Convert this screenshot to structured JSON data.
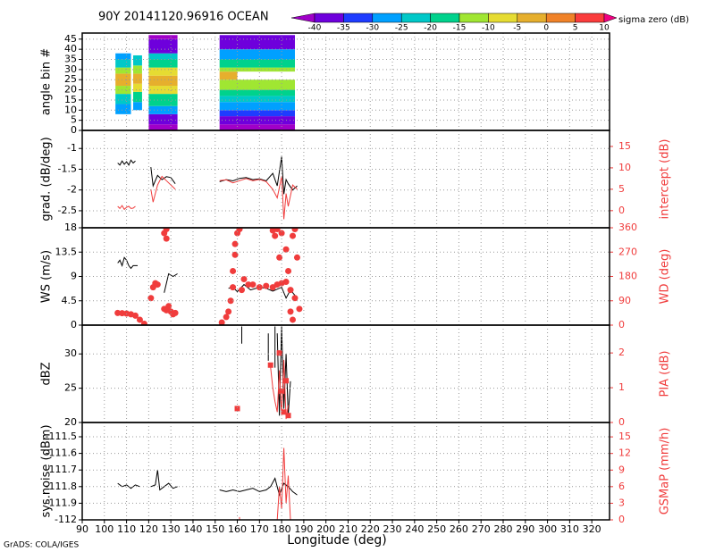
{
  "footer": "GrADS: COLA/IGES",
  "chart_data": [
    {
      "type": "heatmap",
      "title": "90Y 20141120.96916 OCEAN",
      "ylabel": "angle bin #",
      "ylim": [
        0,
        48
      ],
      "yticks": [
        0,
        5,
        10,
        15,
        20,
        25,
        30,
        35,
        40,
        45
      ],
      "grid": true,
      "colorbar": {
        "label": "sigma zero (dB)",
        "levels": [
          -40,
          -35,
          -30,
          -25,
          -20,
          -15,
          -10,
          -5,
          0,
          5,
          10
        ],
        "colors": [
          "#a000c8",
          "#6e00dc",
          "#1e3cff",
          "#00a0ff",
          "#00c8c8",
          "#00d28c",
          "#a0e632",
          "#e6dc32",
          "#e6af2d",
          "#f08228",
          "#fa3c3c",
          "#f00082"
        ]
      },
      "cells": [
        [
          105,
          112,
          8,
          13,
          -27
        ],
        [
          105,
          112,
          13,
          18,
          -22
        ],
        [
          105,
          112,
          18,
          22,
          -12
        ],
        [
          105,
          112,
          22,
          28,
          -2
        ],
        [
          105,
          112,
          28,
          31,
          -12
        ],
        [
          105,
          112,
          31,
          35,
          -22
        ],
        [
          105,
          112,
          35,
          38,
          -28
        ],
        [
          113,
          117,
          10,
          14,
          -27
        ],
        [
          113,
          117,
          14,
          19,
          -20
        ],
        [
          113,
          117,
          19,
          23,
          -10
        ],
        [
          113,
          117,
          23,
          28,
          -3
        ],
        [
          113,
          117,
          28,
          32,
          -14
        ],
        [
          113,
          117,
          32,
          37,
          -24
        ],
        [
          120,
          133,
          0,
          3,
          -42
        ],
        [
          120,
          133,
          3,
          8,
          -37
        ],
        [
          120,
          133,
          8,
          12,
          -27
        ],
        [
          120,
          133,
          12,
          18,
          -20
        ],
        [
          120,
          133,
          18,
          22,
          -8
        ],
        [
          120,
          133,
          22,
          27,
          -2
        ],
        [
          120,
          133,
          27,
          31,
          -8
        ],
        [
          120,
          133,
          31,
          35,
          -18
        ],
        [
          120,
          133,
          35,
          38,
          -25
        ],
        [
          120,
          133,
          38,
          45,
          -37
        ],
        [
          120,
          133,
          45,
          47,
          -42
        ],
        [
          152,
          186,
          0,
          3,
          -42
        ],
        [
          152,
          186,
          3,
          7,
          -37
        ],
        [
          152,
          186,
          7,
          10,
          -32
        ],
        [
          152,
          186,
          10,
          14,
          -27
        ],
        [
          152,
          186,
          14,
          17,
          -22
        ],
        [
          152,
          186,
          17,
          20,
          -17
        ],
        [
          152,
          186,
          20,
          25,
          -12
        ],
        [
          152,
          160,
          25,
          29,
          -2
        ],
        [
          152,
          186,
          29,
          31,
          -12
        ],
        [
          152,
          186,
          31,
          35,
          -20
        ],
        [
          152,
          186,
          35,
          40,
          -27
        ],
        [
          152,
          186,
          40,
          47,
          -37
        ]
      ]
    },
    {
      "type": "line",
      "ylabel": "grad. (dB/deg)",
      "y2label": "intercept (dB)",
      "ylim": [
        -2.91,
        -0.565
      ],
      "yticks": [
        -2.5,
        -2,
        -1.5,
        -1
      ],
      "y2lim": [
        -4,
        18.75
      ],
      "y2ticks": [
        0,
        5,
        10,
        15
      ],
      "grid": true,
      "series": [
        {
          "color": "#000000",
          "style": "line",
          "x": [
            106,
            107,
            108,
            109,
            110,
            111,
            112,
            113,
            114,
            null,
            121,
            122,
            124,
            126,
            128,
            130,
            132,
            null,
            152,
            155,
            158,
            161,
            164,
            167,
            170,
            173,
            176,
            178,
            180,
            181,
            182,
            183,
            185,
            187
          ],
          "values": [
            -1.35,
            -1.4,
            -1.3,
            -1.38,
            -1.32,
            -1.4,
            -1.28,
            -1.35,
            -1.3,
            null,
            -1.45,
            -1.9,
            -1.65,
            -1.75,
            -1.68,
            -1.7,
            -1.85,
            null,
            -1.8,
            -1.75,
            -1.78,
            -1.72,
            -1.7,
            -1.75,
            -1.73,
            -1.78,
            -1.6,
            -1.9,
            -1.2,
            -2.1,
            -1.75,
            -1.85,
            -2.0,
            -1.9
          ]
        },
        {
          "color": "#f03c3c",
          "style": "line",
          "axis": "y2",
          "x": [
            106,
            107,
            108,
            109,
            110,
            111,
            112,
            113,
            114,
            null,
            121,
            122,
            124,
            126,
            128,
            130,
            132,
            null,
            152,
            155,
            158,
            161,
            164,
            167,
            170,
            173,
            176,
            178,
            180,
            181,
            182,
            183,
            185,
            187
          ],
          "values": [
            1,
            0.5,
            1.2,
            0.3,
            0.8,
            1,
            0.5,
            0.6,
            1,
            null,
            5,
            2,
            6,
            8,
            7,
            6,
            5,
            null,
            7,
            7.2,
            6.5,
            7,
            7.5,
            7,
            7.3,
            6.8,
            5,
            3,
            8,
            -2,
            4,
            1,
            6,
            5
          ]
        }
      ]
    },
    {
      "type": "line",
      "ylabel": "WS (m/s)",
      "y2label": "WD (deg)",
      "ylim": [
        0,
        18
      ],
      "yticks": [
        0,
        4.5,
        9,
        13.5,
        18
      ],
      "y2lim": [
        0,
        360
      ],
      "y2ticks": [
        0,
        90,
        180,
        270,
        360
      ],
      "grid": true,
      "series": [
        {
          "color": "#000000",
          "style": "line",
          "x": [
            106,
            107,
            108,
            109,
            110,
            111,
            112,
            113,
            115,
            null,
            127,
            129,
            131,
            133,
            null,
            156,
            158,
            160,
            163,
            166,
            170,
            173,
            176,
            180,
            182,
            184,
            186
          ],
          "values": [
            11.5,
            12,
            11,
            12.5,
            12,
            11,
            10.5,
            11,
            11,
            null,
            6,
            9.5,
            9,
            9.5,
            null,
            6.8,
            7,
            6.2,
            7.5,
            6.5,
            7,
            6.8,
            6.3,
            7,
            5,
            6.5,
            5.5
          ]
        },
        {
          "color": "#f03c3c",
          "style": "dots",
          "axis": "y2",
          "x": [
            106,
            108,
            110,
            112,
            114,
            116,
            118,
            121,
            122,
            123,
            124,
            127,
            128,
            129,
            130,
            131,
            132,
            127,
            128,
            128,
            153,
            155,
            156,
            157,
            158,
            158,
            159,
            159,
            160,
            161,
            162,
            163,
            165,
            167,
            170,
            173,
            176,
            178,
            180,
            182,
            184,
            186,
            188,
            176,
            177,
            178,
            179,
            180,
            182,
            183,
            185,
            186,
            187,
            184,
            185
          ],
          "values": [
            45,
            44,
            43,
            40,
            35,
            20,
            5,
            100,
            140,
            155,
            150,
            60,
            55,
            70,
            50,
            40,
            45,
            340,
            355,
            320,
            10,
            30,
            50,
            90,
            140,
            200,
            260,
            300,
            340,
            355,
            130,
            170,
            150,
            150,
            140,
            145,
            140,
            150,
            155,
            160,
            130,
            100,
            60,
            350,
            330,
            355,
            250,
            340,
            280,
            200,
            330,
            355,
            250,
            50,
            20
          ]
        }
      ]
    },
    {
      "type": "line",
      "ylabel": "dBZ",
      "y2label": "PIA (dB)",
      "ylim": [
        20,
        34.2
      ],
      "yticks": [
        20,
        25,
        30
      ],
      "y2lim": [
        0,
        2.8
      ],
      "y2ticks": [
        0,
        1,
        2
      ],
      "grid": true,
      "series": [
        {
          "color": "#000000",
          "style": "line",
          "x": [
            162,
            162,
            null,
            174,
            174,
            null,
            177,
            177,
            null,
            178,
            179,
            180,
            181,
            182,
            183,
            184
          ],
          "values": [
            34,
            31.5,
            null,
            33,
            29,
            null,
            34,
            28,
            null,
            33,
            21,
            34,
            22,
            30,
            21,
            26
          ]
        },
        {
          "color": "#f03c3c",
          "style": "line",
          "axis": "y2",
          "x": [
            175,
            176,
            177,
            178,
            179,
            180,
            181,
            182,
            183
          ],
          "values": [
            1.6,
            1.0,
            0.6,
            0.3,
            1.5,
            0.2,
            1.8,
            0.1,
            0.5
          ]
        },
        {
          "color": "#f03c3c",
          "style": "squares",
          "axis": "y2",
          "x": [
            160,
            175,
            179,
            180,
            181,
            182,
            183
          ],
          "values": [
            0.4,
            1.65,
            2.0,
            0.9,
            0.3,
            1.2,
            0.2
          ]
        }
      ]
    },
    {
      "type": "line",
      "ylabel": "sys.noise (dBm)",
      "y2label": "GSMaP (mm/h)",
      "xlabel": "Longitude (deg)",
      "xlim": [
        90,
        328
      ],
      "xticks": [
        90,
        100,
        110,
        120,
        130,
        140,
        150,
        160,
        170,
        180,
        190,
        200,
        210,
        220,
        230,
        240,
        250,
        260,
        270,
        280,
        290,
        300,
        310,
        320
      ],
      "ylim": [
        -112,
        -111.414
      ],
      "yticks": [
        -112,
        -111.9,
        -111.8,
        -111.7,
        -111.6,
        -111.5
      ],
      "y2lim": [
        0,
        17.6
      ],
      "y2ticks": [
        0,
        3,
        6,
        9,
        12,
        15
      ],
      "grid": true,
      "series": [
        {
          "color": "#000000",
          "style": "line",
          "x": [
            106,
            108,
            110,
            112,
            114,
            116,
            null,
            121,
            123,
            124,
            125,
            127,
            129,
            131,
            133,
            null,
            152,
            155,
            158,
            161,
            164,
            167,
            170,
            173,
            175,
            177,
            179,
            181,
            183,
            185,
            187
          ],
          "values": [
            -111.78,
            -111.8,
            -111.79,
            -111.81,
            -111.79,
            -111.8,
            null,
            -111.8,
            -111.79,
            -111.7,
            -111.82,
            -111.8,
            -111.78,
            -111.81,
            -111.8,
            null,
            -111.82,
            -111.83,
            -111.82,
            -111.83,
            -111.82,
            -111.81,
            -111.83,
            -111.82,
            -111.8,
            -111.75,
            -111.85,
            -111.78,
            -111.8,
            -111.83,
            -111.85
          ]
        },
        {
          "color": "#f03c3c",
          "style": "line",
          "axis": "y2",
          "x": [
            161,
            161,
            null,
            178,
            179,
            180,
            181,
            182,
            183,
            184
          ],
          "values": [
            0,
            0.5,
            null,
            0,
            6,
            2,
            13,
            3,
            8,
            0
          ]
        }
      ]
    }
  ]
}
